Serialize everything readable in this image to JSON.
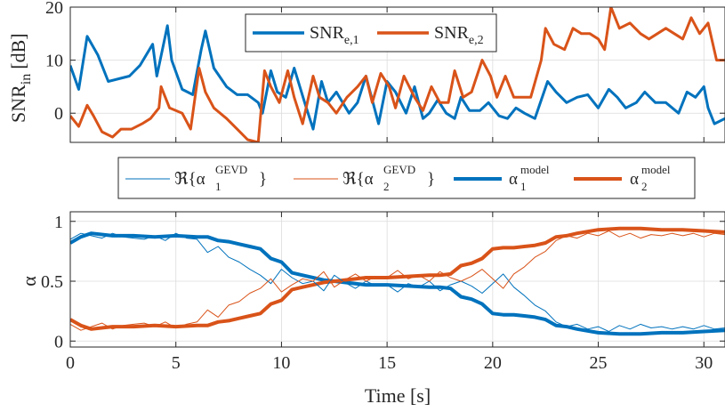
{
  "chart_data": [
    {
      "type": "line",
      "ylabel_main": "SNR",
      "ylabel_sub": "in",
      "ylabel_unit": "[dB]",
      "xlim": [
        0,
        31
      ],
      "ylim": [
        -5.5,
        20
      ],
      "yticks": [
        0,
        10,
        20
      ],
      "ytick_labels": [
        "0",
        "10",
        "20"
      ],
      "grid": true,
      "legend_position": "top-center",
      "series": [
        {
          "name": "SNR",
          "name_sub": "e,1",
          "color": "#0072BD",
          "x": [
            0,
            0.4,
            0.8,
            1.3,
            1.8,
            2.3,
            2.8,
            3.3,
            3.9,
            4.1,
            4.6,
            4.8,
            5.3,
            5.8,
            6.2,
            6.4,
            6.8,
            7.4,
            7.9,
            8.4,
            8.9,
            9.1,
            9.5,
            9.8,
            10.2,
            10.6,
            11.1,
            11.5,
            11.9,
            12.2,
            12.6,
            13.2,
            13.6,
            14.0,
            14.2,
            14.6,
            15.0,
            15.4,
            15.9,
            16.3,
            16.7,
            17.0,
            17.4,
            17.8,
            18.2,
            18.5,
            18.9,
            19.4,
            19.8,
            20.3,
            20.7,
            21.1,
            21.5,
            22.0,
            22.6,
            23.0,
            23.5,
            24.0,
            24.5,
            25.0,
            25.5,
            25.9,
            26.3,
            26.8,
            27.2,
            27.7,
            28.2,
            28.8,
            29.2,
            29.6,
            30.0,
            30.2,
            30.5,
            31.0
          ],
          "values": [
            9,
            4.5,
            14.5,
            11,
            6,
            6.5,
            7,
            9,
            13,
            7,
            16.5,
            10,
            4.5,
            3.5,
            12,
            15.5,
            8.5,
            5,
            3.5,
            3.5,
            2,
            0,
            8,
            4,
            3,
            8.5,
            2,
            -3,
            6,
            2,
            4,
            0,
            2,
            7,
            4,
            -2,
            6,
            4,
            0,
            5,
            -1,
            0,
            2.5,
            0,
            -1,
            3,
            0.5,
            0.5,
            2,
            -0.5,
            -1,
            1,
            0,
            -1,
            6,
            4,
            2,
            3,
            3.5,
            1,
            4.5,
            3,
            1,
            2,
            4,
            2,
            2,
            0,
            4,
            3,
            5,
            1,
            -2,
            -1
          ]
        },
        {
          "name": "SNR",
          "name_sub": "e,2",
          "color": "#D95319",
          "x": [
            0,
            0.4,
            0.8,
            1.1,
            1.5,
            2.0,
            2.4,
            2.9,
            3.4,
            3.8,
            4.2,
            4.3,
            4.7,
            5.3,
            5.7,
            6.1,
            6.4,
            6.8,
            7.4,
            7.9,
            8.4,
            8.9,
            9.2,
            9.5,
            9.9,
            10.3,
            10.6,
            11.0,
            11.5,
            11.8,
            12.2,
            12.6,
            13.1,
            13.6,
            14.0,
            14.3,
            14.7,
            15.1,
            15.4,
            15.8,
            16.3,
            16.7,
            17.1,
            17.5,
            17.9,
            18.2,
            18.6,
            19.0,
            19.5,
            19.9,
            20.2,
            20.6,
            21.0,
            21.4,
            21.8,
            22.3,
            22.5,
            22.9,
            23.4,
            23.8,
            24.2,
            24.6,
            25.0,
            25.3,
            25.6,
            26.0,
            26.5,
            27.0,
            27.4,
            27.8,
            28.2,
            28.6,
            29.0,
            29.4,
            29.8,
            30.2,
            30.6,
            31.0
          ],
          "values": [
            -0.5,
            -2.5,
            1.5,
            -0.5,
            -3.5,
            -4.5,
            -3,
            -3,
            -2,
            -1,
            1,
            5,
            1,
            0,
            -3,
            8.5,
            4,
            1,
            -1,
            -3,
            -5,
            -5.5,
            8,
            5,
            2,
            8,
            3,
            -2,
            7,
            3,
            2,
            0,
            3,
            5,
            7,
            2,
            7.5,
            5,
            1,
            7,
            3,
            0.5,
            5,
            2,
            2,
            8,
            3,
            4,
            10,
            7,
            3,
            7,
            3,
            3,
            3,
            10,
            16,
            13,
            12,
            16,
            15,
            15,
            14,
            12,
            20,
            16,
            17,
            15,
            14,
            15,
            16,
            15,
            14,
            18,
            15,
            17,
            10,
            10
          ]
        }
      ]
    },
    {
      "type": "line",
      "ylabel": "α",
      "xlabel": "Time [s]",
      "xlim": [
        0,
        31
      ],
      "ylim": [
        -0.05,
        1.08
      ],
      "xticks": [
        0,
        5,
        10,
        15,
        20,
        25,
        30
      ],
      "xtick_labels": [
        "0",
        "5",
        "10",
        "15",
        "20",
        "25",
        "30"
      ],
      "yticks": [
        0,
        0.5,
        1
      ],
      "ytick_labels": [
        "0",
        "0.5",
        "1"
      ],
      "grid": true,
      "legend_position": "above",
      "legend": [
        {
          "prefix": "ℜ{α",
          "sub": "1",
          "sup": "GEVD",
          "suffix": "}",
          "color": "#0072BD",
          "style": "thin"
        },
        {
          "prefix": "ℜ{α",
          "sub": "2",
          "sup": "GEVD",
          "suffix": "}",
          "color": "#D95319",
          "style": "thin"
        },
        {
          "prefix": "α",
          "sub": "1",
          "sup": "model",
          "suffix": "",
          "color": "#0072BD",
          "style": "thick"
        },
        {
          "prefix": "α",
          "sub": "2",
          "sup": "model",
          "suffix": "",
          "color": "#D95319",
          "style": "thick"
        }
      ],
      "series": [
        {
          "name": "alpha1_model",
          "color": "#0072BD",
          "x": [
            0,
            0.5,
            1,
            2,
            3,
            4,
            5,
            6,
            6.5,
            7,
            7.5,
            8,
            8.5,
            9,
            9.5,
            10,
            10.5,
            11,
            12,
            13,
            14,
            15,
            16,
            17,
            17.5,
            18,
            18.5,
            19,
            19.5,
            20,
            20.5,
            21,
            21.5,
            22,
            22.5,
            23,
            23.5,
            24,
            25,
            26,
            27,
            28,
            29,
            30,
            31
          ],
          "values": [
            0.82,
            0.87,
            0.9,
            0.88,
            0.88,
            0.87,
            0.88,
            0.87,
            0.87,
            0.84,
            0.83,
            0.81,
            0.79,
            0.77,
            0.69,
            0.66,
            0.57,
            0.55,
            0.51,
            0.49,
            0.47,
            0.47,
            0.46,
            0.45,
            0.45,
            0.44,
            0.37,
            0.35,
            0.31,
            0.23,
            0.22,
            0.22,
            0.21,
            0.2,
            0.18,
            0.13,
            0.12,
            0.1,
            0.07,
            0.06,
            0.06,
            0.07,
            0.07,
            0.08,
            0.09
          ]
        },
        {
          "name": "alpha2_model",
          "color": "#D95319",
          "x": [
            0,
            0.5,
            1,
            2,
            3,
            4,
            5,
            6,
            6.5,
            7,
            7.5,
            8,
            8.5,
            9,
            9.5,
            10,
            10.5,
            11,
            12,
            13,
            14,
            15,
            16,
            17,
            17.5,
            18,
            18.5,
            19,
            19.5,
            20,
            20.5,
            21,
            21.5,
            22,
            22.5,
            23,
            23.5,
            24,
            25,
            26,
            27,
            28,
            29,
            30,
            31
          ],
          "values": [
            0.18,
            0.13,
            0.1,
            0.12,
            0.12,
            0.13,
            0.12,
            0.13,
            0.13,
            0.16,
            0.17,
            0.19,
            0.21,
            0.23,
            0.31,
            0.34,
            0.43,
            0.45,
            0.49,
            0.51,
            0.53,
            0.53,
            0.54,
            0.55,
            0.55,
            0.56,
            0.63,
            0.65,
            0.69,
            0.77,
            0.78,
            0.78,
            0.79,
            0.8,
            0.82,
            0.87,
            0.88,
            0.9,
            0.93,
            0.94,
            0.94,
            0.93,
            0.93,
            0.92,
            0.91
          ]
        },
        {
          "name": "alpha1_gevd",
          "color": "#0072BD",
          "x": [
            0,
            0.5,
            1,
            1.5,
            2,
            2.5,
            3,
            3.5,
            4,
            4.5,
            5,
            5.5,
            6,
            6.5,
            7,
            7.5,
            8,
            8.5,
            9,
            9.5,
            10,
            10.5,
            11,
            11.5,
            12,
            12.5,
            13,
            13.5,
            14,
            14.5,
            15,
            15.5,
            16,
            16.5,
            17,
            17.5,
            18,
            18.5,
            19,
            19.5,
            20,
            20.5,
            21,
            21.5,
            22,
            22.5,
            23,
            23.5,
            24,
            24.5,
            25,
            25.5,
            26,
            26.5,
            27,
            27.5,
            28,
            28.5,
            29,
            29.5,
            30,
            30.5,
            31
          ],
          "values": [
            0.85,
            0.9,
            0.88,
            0.86,
            0.9,
            0.87,
            0.86,
            0.85,
            0.88,
            0.84,
            0.9,
            0.86,
            0.85,
            0.74,
            0.79,
            0.7,
            0.66,
            0.6,
            0.55,
            0.48,
            0.6,
            0.53,
            0.48,
            0.5,
            0.42,
            0.55,
            0.49,
            0.44,
            0.5,
            0.46,
            0.47,
            0.41,
            0.48,
            0.45,
            0.5,
            0.42,
            0.47,
            0.5,
            0.46,
            0.4,
            0.48,
            0.56,
            0.45,
            0.38,
            0.3,
            0.25,
            0.16,
            0.12,
            0.14,
            0.1,
            0.12,
            0.08,
            0.13,
            0.1,
            0.14,
            0.11,
            0.12,
            0.1,
            0.12,
            0.1,
            0.13,
            0.1,
            0.11
          ]
        },
        {
          "name": "alpha2_gevd",
          "color": "#D95319",
          "x": [
            0,
            0.5,
            1,
            1.5,
            2,
            2.5,
            3,
            3.5,
            4,
            4.5,
            5,
            5.5,
            6,
            6.5,
            7,
            7.5,
            8,
            8.5,
            9,
            9.5,
            10,
            10.5,
            11,
            11.5,
            12,
            12.5,
            13,
            13.5,
            14,
            14.5,
            15,
            15.5,
            16,
            16.5,
            17,
            17.5,
            18,
            18.5,
            19,
            19.5,
            20,
            20.5,
            21,
            21.5,
            22,
            22.5,
            23,
            23.5,
            24,
            24.5,
            25,
            25.5,
            26,
            26.5,
            27,
            27.5,
            28,
            28.5,
            29,
            29.5,
            30,
            30.5,
            31
          ],
          "values": [
            0.14,
            0.09,
            0.12,
            0.15,
            0.1,
            0.13,
            0.14,
            0.15,
            0.12,
            0.16,
            0.11,
            0.14,
            0.16,
            0.26,
            0.2,
            0.3,
            0.33,
            0.4,
            0.44,
            0.52,
            0.41,
            0.47,
            0.52,
            0.5,
            0.58,
            0.45,
            0.51,
            0.56,
            0.5,
            0.54,
            0.53,
            0.59,
            0.52,
            0.55,
            0.5,
            0.58,
            0.53,
            0.5,
            0.54,
            0.6,
            0.52,
            0.44,
            0.56,
            0.62,
            0.7,
            0.75,
            0.84,
            0.88,
            0.86,
            0.9,
            0.88,
            0.92,
            0.87,
            0.9,
            0.86,
            0.89,
            0.88,
            0.9,
            0.88,
            0.9,
            0.87,
            0.9,
            0.89
          ]
        }
      ]
    }
  ]
}
